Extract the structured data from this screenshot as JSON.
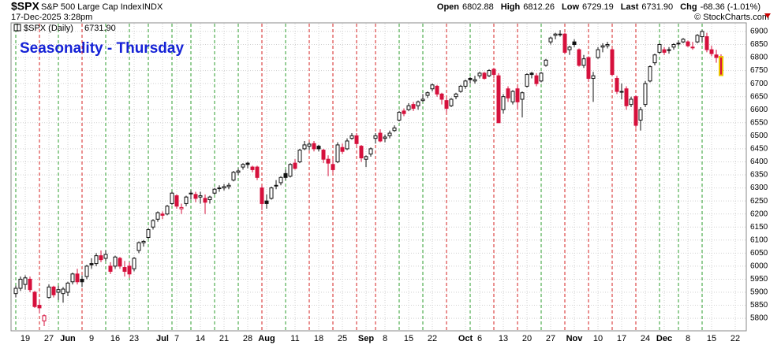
{
  "header": {
    "symbol": "$SPX",
    "name": "S&P 500 Large Cap Index",
    "exchange": "INDX",
    "date": "17-Dec-2025 3:28pm",
    "quote": [
      {
        "label": "Open",
        "value": "6802.88"
      },
      {
        "label": "High",
        "value": "6812.26"
      },
      {
        "label": "Low",
        "value": "6729.19"
      },
      {
        "label": "Last",
        "value": "6731.90"
      },
      {
        "label": "Chg",
        "value": "-68.36 (-1.01%)"
      }
    ],
    "credit": "© StockCharts.com"
  },
  "chart_data": {
    "type": "candlestick",
    "title": "Seasonality - Thursday",
    "legend_label": "$SPX (Daily)",
    "legend_value": "6731.90",
    "up_color": "#111111",
    "down_color": "#d6103c",
    "last_highlight": "#ecc400",
    "grid": true,
    "ylim": [
      5752,
      6930
    ],
    "yticks": [
      5800,
      5850,
      5900,
      5950,
      6000,
      6050,
      6100,
      6150,
      6200,
      6250,
      6300,
      6350,
      6400,
      6450,
      6500,
      6550,
      6600,
      6650,
      6700,
      6750,
      6800,
      6850,
      6900
    ],
    "thursdays": {
      "at": [
        0,
        5,
        9,
        14,
        19,
        24,
        28,
        33,
        37,
        42,
        47,
        52,
        57,
        62,
        67,
        72,
        76,
        81,
        86,
        91,
        96,
        101,
        106,
        111,
        116,
        121,
        126,
        131,
        136,
        140,
        145
      ],
      "colors": [
        "#2e9e2e",
        "#d62020",
        "#2e9e2e",
        "#d62020",
        "#2e9e2e",
        "#2e9e2e",
        "#2e9e2e",
        "#2e9e2e",
        "#2e9e2e",
        "#2e9e2e",
        "#2e9e2e",
        "#d62020",
        "#2e9e2e",
        "#d62020",
        "#d62020",
        "#d62020",
        "#d62020",
        "#2e9e2e",
        "#2e9e2e",
        "#d62020",
        "#2e9e2e",
        "#d62020",
        "#d62020",
        "#2e9e2e",
        "#d62020",
        "#d62020",
        "#d62020",
        "#d62020",
        "#2e9e2e",
        "#2e9e2e",
        "#2e9e2e"
      ]
    },
    "categories": [
      null,
      null,
      "19",
      null,
      null,
      null,
      null,
      "27",
      null,
      null,
      null,
      "Jun",
      null,
      null,
      null,
      null,
      "9",
      null,
      null,
      null,
      null,
      "16",
      null,
      null,
      null,
      "23",
      null,
      null,
      null,
      null,
      null,
      "Jul",
      null,
      null,
      "7",
      null,
      null,
      null,
      null,
      "14",
      null,
      null,
      null,
      null,
      "21",
      null,
      null,
      null,
      null,
      "28",
      null,
      null,
      null,
      "Aug",
      null,
      null,
      null,
      null,
      null,
      "11",
      null,
      null,
      null,
      null,
      "18",
      null,
      null,
      null,
      null,
      "25",
      null,
      null,
      null,
      null,
      "Sep",
      null,
      null,
      null,
      "8",
      null,
      null,
      null,
      null,
      "15",
      null,
      null,
      null,
      null,
      "22",
      null,
      null,
      null,
      null,
      null,
      null,
      "Oct",
      null,
      null,
      "6",
      null,
      null,
      null,
      null,
      "13",
      null,
      null,
      null,
      null,
      "20",
      null,
      null,
      null,
      null,
      "27",
      null,
      null,
      null,
      null,
      "Nov",
      null,
      null,
      null,
      null,
      "10",
      null,
      null,
      null,
      null,
      "17",
      null,
      null,
      null,
      null,
      "24",
      null,
      null,
      null,
      "Dec",
      null,
      null,
      null,
      null,
      "8",
      null,
      null,
      null,
      null,
      "15",
      null,
      null,
      null,
      null,
      "22"
    ],
    "open": [
      5895,
      5915,
      5930,
      5950,
      5900,
      5850,
      5790,
      5880,
      5920,
      5900,
      5895,
      5900,
      5940,
      5970,
      5950,
      5960,
      6010,
      6010,
      6040,
      6030,
      6000,
      6000,
      6030,
      5995,
      6000,
      5990,
      6060,
      6090,
      6110,
      6150,
      6180,
      6200,
      6200,
      6240,
      6270,
      6220,
      6240,
      6280,
      6275,
      6265,
      6260,
      6255,
      6280,
      6300,
      6300,
      6305,
      6330,
      6360,
      6380,
      6395,
      6380,
      6380,
      6300,
      6250,
      6260,
      6310,
      6320,
      6355,
      6345,
      6395,
      6400,
      6450,
      6460,
      6470,
      6460,
      6445,
      6410,
      6390,
      6400,
      6455,
      6450,
      6490,
      6500,
      6460,
      6410,
      6430,
      6490,
      6510,
      6490,
      6500,
      6520,
      6560,
      6595,
      6600,
      6620,
      6615,
      6635,
      6655,
      6680,
      6690,
      6660,
      6635,
      6615,
      6650,
      6670,
      6690,
      6720,
      6710,
      6730,
      6740,
      6730,
      6755,
      6730,
      6600,
      6680,
      6630,
      6680,
      6640,
      6690,
      6740,
      6730,
      6710,
      6770,
      6860,
      6885,
      6890,
      6890,
      6830,
      6860,
      6830,
      6770,
      6800,
      6720,
      6800,
      6840,
      6845,
      6830,
      6720,
      6670,
      6680,
      6620,
      6650,
      6560,
      6620,
      6710,
      6780,
      6820,
      6830,
      6830,
      6840,
      6855,
      6860,
      6860,
      6840,
      6860,
      6880,
      6880,
      6830,
      6810,
      6802.88,
      null,
      null,
      null
    ],
    "high": [
      5925,
      5960,
      5965,
      5960,
      5905,
      5870,
      5815,
      5930,
      5925,
      5925,
      5920,
      5940,
      5975,
      5990,
      5965,
      6005,
      6030,
      6050,
      6060,
      6060,
      6015,
      6040,
      6035,
      6020,
      6015,
      6035,
      6095,
      6100,
      6145,
      6180,
      6210,
      6210,
      6235,
      6285,
      6275,
      6240,
      6270,
      6290,
      6285,
      6285,
      6275,
      6270,
      6300,
      6310,
      6315,
      6320,
      6365,
      6375,
      6395,
      6400,
      6385,
      6385,
      6310,
      6275,
      6305,
      6330,
      6345,
      6370,
      6395,
      6410,
      6450,
      6480,
      6475,
      6480,
      6465,
      6450,
      6425,
      6410,
      6475,
      6470,
      6490,
      6510,
      6510,
      6465,
      6425,
      6455,
      6510,
      6525,
      6505,
      6520,
      6540,
      6595,
      6605,
      6625,
      6630,
      6635,
      6660,
      6670,
      6700,
      6695,
      6665,
      6645,
      6645,
      6665,
      6695,
      6715,
      6725,
      6730,
      6745,
      6745,
      6755,
      6760,
      6740,
      6660,
      6690,
      6675,
      6690,
      6670,
      6740,
      6745,
      6740,
      6745,
      6795,
      6880,
      6895,
      6905,
      6895,
      6845,
      6870,
      6835,
      6810,
      6805,
      6745,
      6840,
      6855,
      6860,
      6835,
      6730,
      6700,
      6690,
      6650,
      6655,
      6610,
      6710,
      6770,
      6815,
      6855,
      6840,
      6840,
      6855,
      6865,
      6875,
      6865,
      6860,
      6890,
      6905,
      6895,
      6845,
      6830,
      6812.26,
      null,
      null,
      null
    ],
    "low": [
      5880,
      5905,
      5910,
      5900,
      5840,
      5820,
      5770,
      5875,
      5880,
      5870,
      5860,
      5885,
      5930,
      5930,
      5920,
      5950,
      5990,
      6000,
      6015,
      6020,
      5970,
      5990,
      5990,
      5960,
      5955,
      5980,
      6050,
      6075,
      6105,
      6140,
      6170,
      6180,
      6195,
      6235,
      6220,
      6200,
      6230,
      6255,
      6245,
      6240,
      6200,
      6240,
      6275,
      6285,
      6290,
      6295,
      6325,
      6350,
      6370,
      6375,
      6360,
      6330,
      6215,
      6220,
      6255,
      6295,
      6310,
      6330,
      6340,
      6370,
      6395,
      6445,
      6445,
      6440,
      6440,
      6395,
      6345,
      6360,
      6395,
      6430,
      6445,
      6485,
      6460,
      6400,
      6380,
      6420,
      6470,
      6475,
      6475,
      6490,
      6515,
      6555,
      6575,
      6595,
      6595,
      6600,
      6630,
      6645,
      6670,
      6650,
      6620,
      6590,
      6610,
      6640,
      6665,
      6680,
      6700,
      6700,
      6720,
      6715,
      6725,
      6720,
      6550,
      6585,
      6630,
      6620,
      6600,
      6570,
      6685,
      6720,
      6690,
      6705,
      6765,
      6850,
      6870,
      6880,
      6815,
      6810,
      6840,
      6765,
      6760,
      6710,
      6630,
      6795,
      6820,
      6835,
      6730,
      6660,
      6640,
      6600,
      6610,
      6530,
      6520,
      6610,
      6705,
      6770,
      6815,
      6810,
      6815,
      6830,
      6845,
      6855,
      6840,
      6830,
      6855,
      6860,
      6820,
      6805,
      6780,
      6729.19,
      null,
      null,
      null
    ],
    "close": [
      5915,
      5950,
      5955,
      5910,
      5845,
      5840,
      5810,
      5920,
      5890,
      5910,
      5912,
      5935,
      5970,
      5940,
      5940,
      6000,
      6005,
      6040,
      6025,
      6045,
      5980,
      6035,
      6000,
      5980,
      5970,
      6030,
      6090,
      6095,
      6140,
      6175,
      6205,
      6195,
      6230,
      6280,
      6230,
      6225,
      6265,
      6280,
      6260,
      6270,
      6245,
      6265,
      6295,
      6297,
      6305,
      6310,
      6360,
      6365,
      6390,
      6390,
      6370,
      6340,
      6240,
      6240,
      6300,
      6310,
      6340,
      6340,
      6390,
      6375,
      6445,
      6465,
      6468,
      6450,
      6450,
      6410,
      6395,
      6370,
      6465,
      6440,
      6480,
      6500,
      6470,
      6415,
      6420,
      6450,
      6500,
      6480,
      6495,
      6510,
      6530,
      6590,
      6585,
      6615,
      6605,
      6630,
      6640,
      6665,
      6695,
      6660,
      6640,
      6605,
      6640,
      6660,
      6690,
      6710,
      6715,
      6715,
      6740,
      6720,
      6750,
      6735,
      6550,
      6650,
      6645,
      6670,
      6630,
      6665,
      6735,
      6735,
      6700,
      6740,
      6790,
      6875,
      6890,
      6890,
      6820,
      6840,
      6850,
      6770,
      6795,
      6720,
      6730,
      6830,
      6845,
      6850,
      6735,
      6670,
      6670,
      6615,
      6640,
      6540,
      6600,
      6700,
      6765,
      6810,
      6850,
      6820,
      6830,
      6850,
      6855,
      6870,
      6845,
      6840,
      6885,
      6900,
      6830,
      6815,
      6800,
      6731.9,
      null,
      null,
      null
    ]
  }
}
